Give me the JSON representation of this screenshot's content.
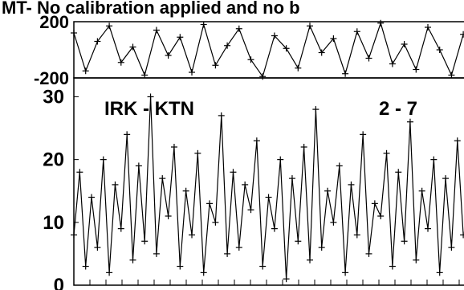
{
  "title": "MT- No calibration applied and no b",
  "chart_data": [
    {
      "type": "scatter",
      "panel": "phase",
      "ylim": [
        -200,
        200
      ],
      "ytick_labels": [
        "200",
        "-200"
      ],
      "ytick_values": [
        200,
        -200
      ],
      "x_range": [
        0,
        100
      ],
      "series": [
        {
          "marker": "plus",
          "connected": true,
          "x": [
            0,
            3,
            6,
            9,
            12,
            15,
            18,
            21,
            24,
            27,
            30,
            33,
            36,
            39,
            42,
            45,
            48,
            51,
            54,
            57,
            60,
            63,
            66,
            69,
            72,
            75,
            78,
            81,
            84,
            87,
            90,
            93,
            96,
            99
          ],
          "y": [
            120,
            -150,
            60,
            170,
            -90,
            20,
            -180,
            140,
            -40,
            90,
            -160,
            180,
            -110,
            30,
            150,
            -70,
            -190,
            100,
            10,
            -130,
            170,
            -20,
            80,
            -170,
            130,
            -60,
            190,
            -100,
            40,
            -140,
            160,
            0,
            -180,
            110
          ]
        }
      ]
    },
    {
      "type": "scatter",
      "panel": "amplitude",
      "ylim": [
        0,
        33
      ],
      "ytick_labels": [
        "30",
        "20",
        "10",
        "0"
      ],
      "ytick_values": [
        30,
        20,
        10,
        0
      ],
      "annotations": [
        "IRK - KTN",
        "2 - 7"
      ],
      "x_range": [
        0,
        100
      ],
      "series": [
        {
          "marker": "plus",
          "connected": true,
          "x": [
            0,
            1.5,
            3,
            4.5,
            6,
            7.5,
            9,
            10.5,
            12,
            13.5,
            15,
            16.5,
            18,
            19.5,
            21,
            22.5,
            24,
            25.5,
            27,
            28.5,
            30,
            31.5,
            33,
            34.5,
            36,
            37.5,
            39,
            40.5,
            42,
            43.5,
            45,
            46.5,
            48,
            49.5,
            51,
            52.5,
            54,
            55.5,
            57,
            58.5,
            60,
            61.5,
            63,
            64.5,
            66,
            67.5,
            69,
            70.5,
            72,
            73.5,
            75,
            76.5,
            78,
            79.5,
            81,
            82.5,
            84,
            85.5,
            87,
            88.5,
            90,
            91.5,
            93,
            94.5,
            96,
            97.5,
            99
          ],
          "y": [
            8,
            18,
            3,
            14,
            6,
            20,
            2,
            16,
            9,
            24,
            4,
            19,
            7,
            30,
            5,
            17,
            11,
            22,
            3,
            15,
            8,
            21,
            2,
            13,
            10,
            27,
            5,
            18,
            6,
            16,
            12,
            23,
            3,
            14,
            9,
            20,
            1,
            17,
            7,
            22,
            4,
            28,
            6,
            15,
            10,
            19,
            2,
            16,
            8,
            24,
            5,
            13,
            11,
            21,
            3,
            18,
            7,
            26,
            4,
            15,
            9,
            20,
            2,
            17,
            6,
            23,
            8
          ]
        }
      ]
    }
  ]
}
